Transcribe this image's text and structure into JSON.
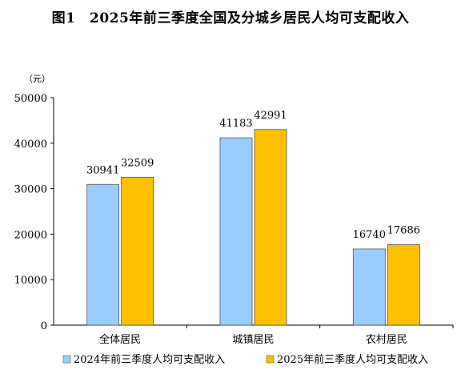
{
  "figure": {
    "title": "图1　2025年前三季度全国及分城乡居民人均可支配收入"
  },
  "chart_data": {
    "type": "bar",
    "title": "图1　2025年前三季度全国及分城乡居民人均可支配收入",
    "unit": "（元）",
    "xlabel": "",
    "ylabel": "",
    "ylim": [
      0,
      50000
    ],
    "yticks": [
      0,
      10000,
      20000,
      30000,
      40000,
      50000
    ],
    "categories": [
      "全体居民",
      "城镇居民",
      "农村居民"
    ],
    "series": [
      {
        "name": "2024年前三季度人均可支配收入",
        "values": [
          30941,
          41183,
          16740
        ],
        "color": "#99CCFF"
      },
      {
        "name": "2025年前三季度人均可支配收入",
        "values": [
          32509,
          42991,
          17686
        ],
        "color": "#FFC000"
      }
    ],
    "legend_position": "bottom",
    "grid": false
  }
}
